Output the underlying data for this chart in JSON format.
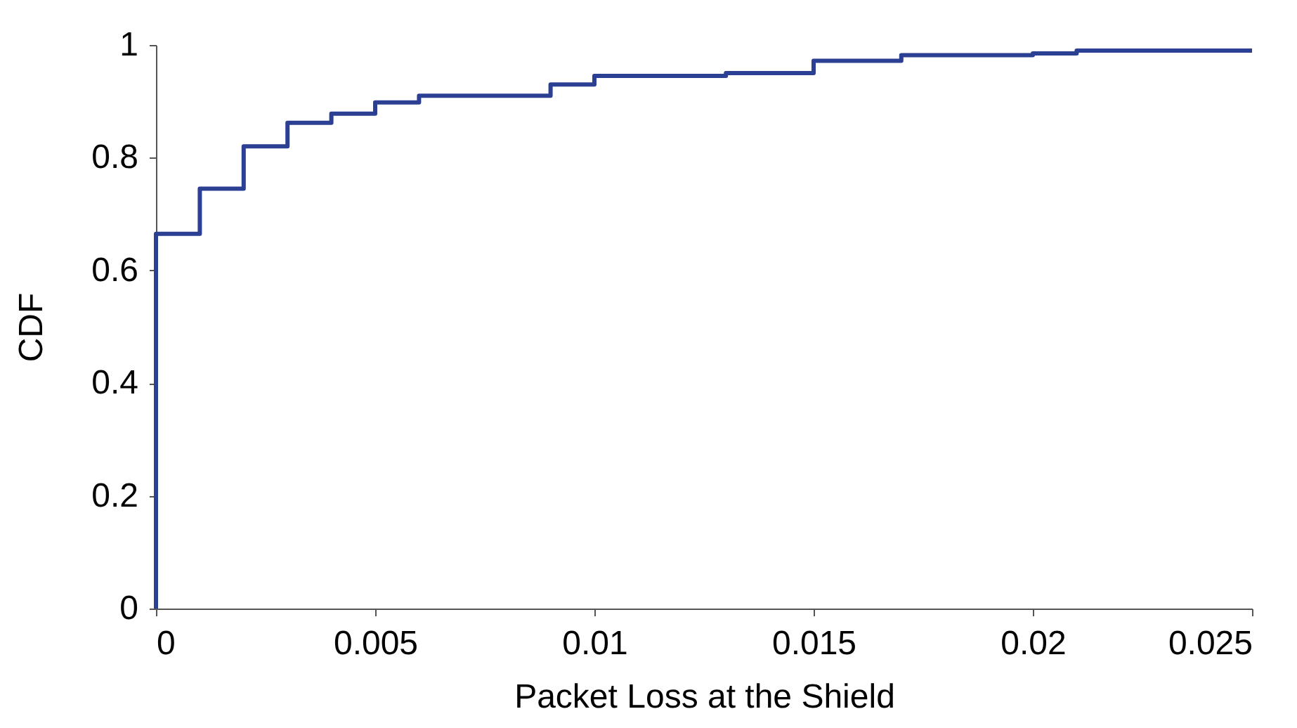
{
  "chart_data": {
    "type": "step",
    "xlabel": "Packet Loss at the Shield",
    "ylabel": "CDF",
    "x": [
      0,
      0,
      0.001,
      0.002,
      0.003,
      0.004,
      0.005,
      0.006,
      0.009,
      0.01,
      0.013,
      0.015,
      0.017,
      0.02,
      0.021,
      0.025
    ],
    "series": [
      {
        "color": "#2b3f93",
        "values": [
          0,
          0.665,
          0.745,
          0.82,
          0.862,
          0.878,
          0.898,
          0.91,
          0.93,
          0.945,
          0.95,
          0.972,
          0.982,
          0.985,
          0.99,
          0.99
        ]
      }
    ],
    "xlim": [
      0,
      0.025
    ],
    "xticks": [
      0,
      0.005,
      0.01,
      0.015,
      0.02,
      0.025
    ],
    "ylim": [
      0,
      1
    ],
    "yticks": [
      0,
      0.2,
      0.4,
      0.6,
      0.8,
      1
    ],
    "grid": false,
    "marker": "none",
    "line_style": "solid"
  }
}
